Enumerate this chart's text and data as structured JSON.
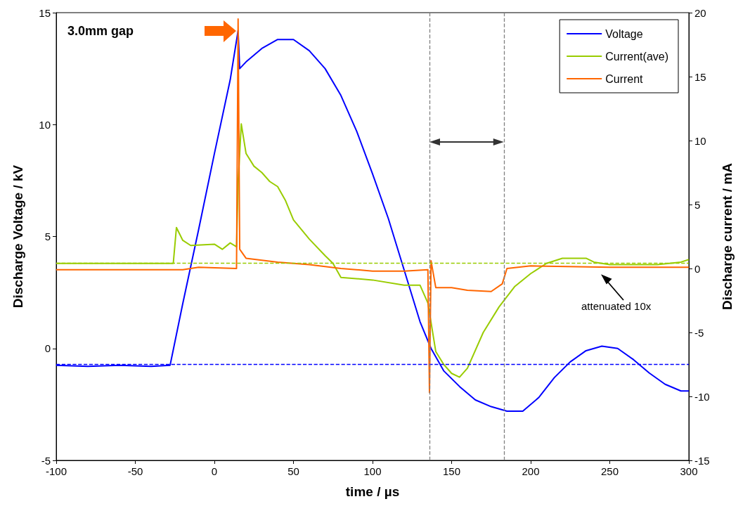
{
  "chart_data": {
    "type": "line",
    "xlabel": "time / µs",
    "ylabel": "Discharge Voltage / kV",
    "y2label": "Discharge current / mA",
    "xlim": [
      -100,
      300
    ],
    "xticks": [
      -100,
      -50,
      0,
      50,
      100,
      150,
      200,
      250,
      300
    ],
    "ylim": [
      -5,
      15
    ],
    "yticks": [
      -5,
      0,
      5,
      10,
      15
    ],
    "y2lim": [
      -15,
      20
    ],
    "y2ticks": [
      -15,
      -10,
      -5,
      0,
      5,
      10,
      15,
      20
    ],
    "grid": false,
    "legend": "top right",
    "marker": "none",
    "line_style": "solid",
    "annotations": [
      "3.0mm gap",
      "attenuated 10x"
    ],
    "ref_lines": [
      {
        "axis": "y",
        "value": -0.7,
        "label": null,
        "color": "#0000ff",
        "line_style": "dashed"
      },
      {
        "axis": "y2",
        "value": 0.4,
        "label": null,
        "color": "#99cc00",
        "line_style": "dashed"
      },
      {
        "axis": "x",
        "value": 136,
        "label": null,
        "color": "#808080",
        "line_style": "dashed"
      },
      {
        "axis": "x",
        "value": 183,
        "label": null,
        "color": "#808080",
        "line_style": "dashed"
      }
    ],
    "series": [
      {
        "name": "Voltage",
        "color": "#0000ff",
        "x": [
          -100,
          -80,
          -60,
          -40,
          -28,
          -20,
          -10,
          0,
          10,
          15,
          16,
          20,
          30,
          40,
          50,
          60,
          70,
          80,
          90,
          100,
          110,
          120,
          130,
          137,
          145,
          155,
          165,
          175,
          185,
          195,
          205,
          215,
          225,
          235,
          245,
          255,
          265,
          275,
          285,
          295,
          300
        ],
        "values": [
          -0.75,
          -0.8,
          -0.75,
          -0.8,
          -0.75,
          2.0,
          5.3,
          8.7,
          12.0,
          14.2,
          12.5,
          12.8,
          13.4,
          13.8,
          13.8,
          13.3,
          12.5,
          11.3,
          9.7,
          7.8,
          5.8,
          3.5,
          1.2,
          0.0,
          -1.0,
          -1.7,
          -2.3,
          -2.6,
          -2.8,
          -2.8,
          -2.2,
          -1.3,
          -0.6,
          -0.1,
          0.1,
          0.0,
          -0.5,
          -1.1,
          -1.6,
          -1.9,
          -1.9
        ]
      },
      {
        "name": "Current(ave)",
        "color": "#99cc00",
        "axis": "y2",
        "x": [
          -100,
          -26,
          -24,
          -20,
          -15,
          0,
          5,
          10,
          14,
          15,
          17,
          20,
          25,
          30,
          35,
          40,
          45,
          50,
          60,
          70,
          75,
          80,
          100,
          120,
          130,
          135,
          140,
          145,
          150,
          155,
          160,
          170,
          180,
          190,
          200,
          210,
          220,
          235,
          240,
          250,
          280,
          295,
          300
        ],
        "values": [
          0.4,
          0.4,
          3.2,
          2.2,
          1.8,
          1.9,
          1.5,
          2.0,
          1.7,
          6.7,
          11.3,
          9.0,
          8.0,
          7.5,
          6.8,
          6.4,
          5.3,
          3.8,
          2.3,
          1.0,
          0.4,
          -0.7,
          -0.9,
          -1.3,
          -1.3,
          -2.7,
          -6.5,
          -7.5,
          -8.2,
          -8.5,
          -7.8,
          -5.0,
          -3.0,
          -1.4,
          -0.4,
          0.4,
          0.8,
          0.8,
          0.5,
          0.3,
          0.3,
          0.5,
          0.7
        ]
      },
      {
        "name": "Current",
        "color": "#ff6600",
        "axis": "y2",
        "x": [
          -100,
          -60,
          -20,
          -10,
          14,
          15,
          16,
          20,
          40,
          60,
          80,
          100,
          120,
          135,
          136,
          137,
          140,
          150,
          160,
          175,
          182,
          185,
          200,
          250,
          300
        ],
        "values": [
          -0.1,
          -0.1,
          -0.1,
          0.1,
          0.0,
          19.5,
          1.5,
          0.8,
          0.5,
          0.3,
          0.0,
          -0.2,
          -0.2,
          -0.1,
          -9.7,
          0.6,
          -1.5,
          -1.5,
          -1.7,
          -1.8,
          -1.2,
          0.0,
          0.2,
          0.1,
          0.1
        ]
      }
    ]
  }
}
